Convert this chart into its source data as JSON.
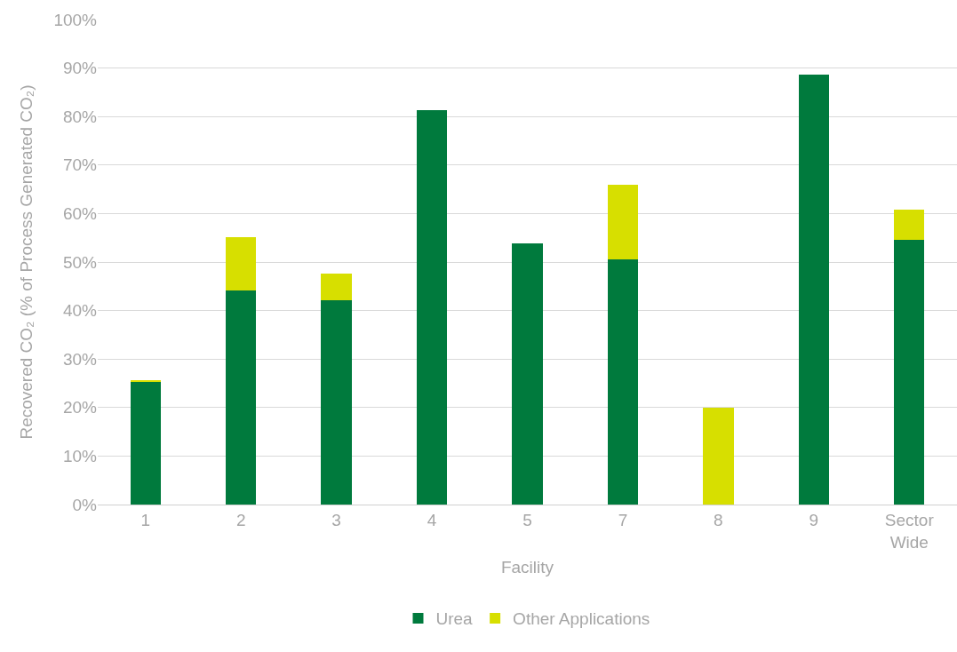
{
  "chart_data": {
    "type": "bar",
    "stacked": true,
    "xlabel": "Facility",
    "ylabel": "Recovered CO₂ (% of Process Generated CO₂)",
    "categories": [
      "1",
      "2",
      "3",
      "4",
      "5",
      "7",
      "8",
      "9",
      "Sector Wide"
    ],
    "series": [
      {
        "name": "Urea",
        "color": "#007a3d",
        "values": [
          25.3,
          44.1,
          42.1,
          81.3,
          53.8,
          50.5,
          0,
          88.6,
          54.6
        ]
      },
      {
        "name": "Other Applications",
        "color": "#d7df00",
        "values": [
          0.3,
          11.0,
          5.5,
          0,
          0,
          15.4,
          20.0,
          0,
          6.2
        ]
      }
    ],
    "ylim": [
      0,
      100
    ],
    "yticks": [
      {
        "value": 0,
        "label": "0%"
      },
      {
        "value": 10,
        "label": "10%"
      },
      {
        "value": 20,
        "label": "20%"
      },
      {
        "value": 30,
        "label": "30%"
      },
      {
        "value": 40,
        "label": "40%"
      },
      {
        "value": 50,
        "label": "50%"
      },
      {
        "value": 60,
        "label": "60%"
      },
      {
        "value": 70,
        "label": "70%"
      },
      {
        "value": 80,
        "label": "80%"
      },
      {
        "value": 90,
        "label": "90%"
      },
      {
        "value": 100,
        "label": "100%"
      }
    ],
    "grid": "y",
    "legend": "bottom"
  }
}
